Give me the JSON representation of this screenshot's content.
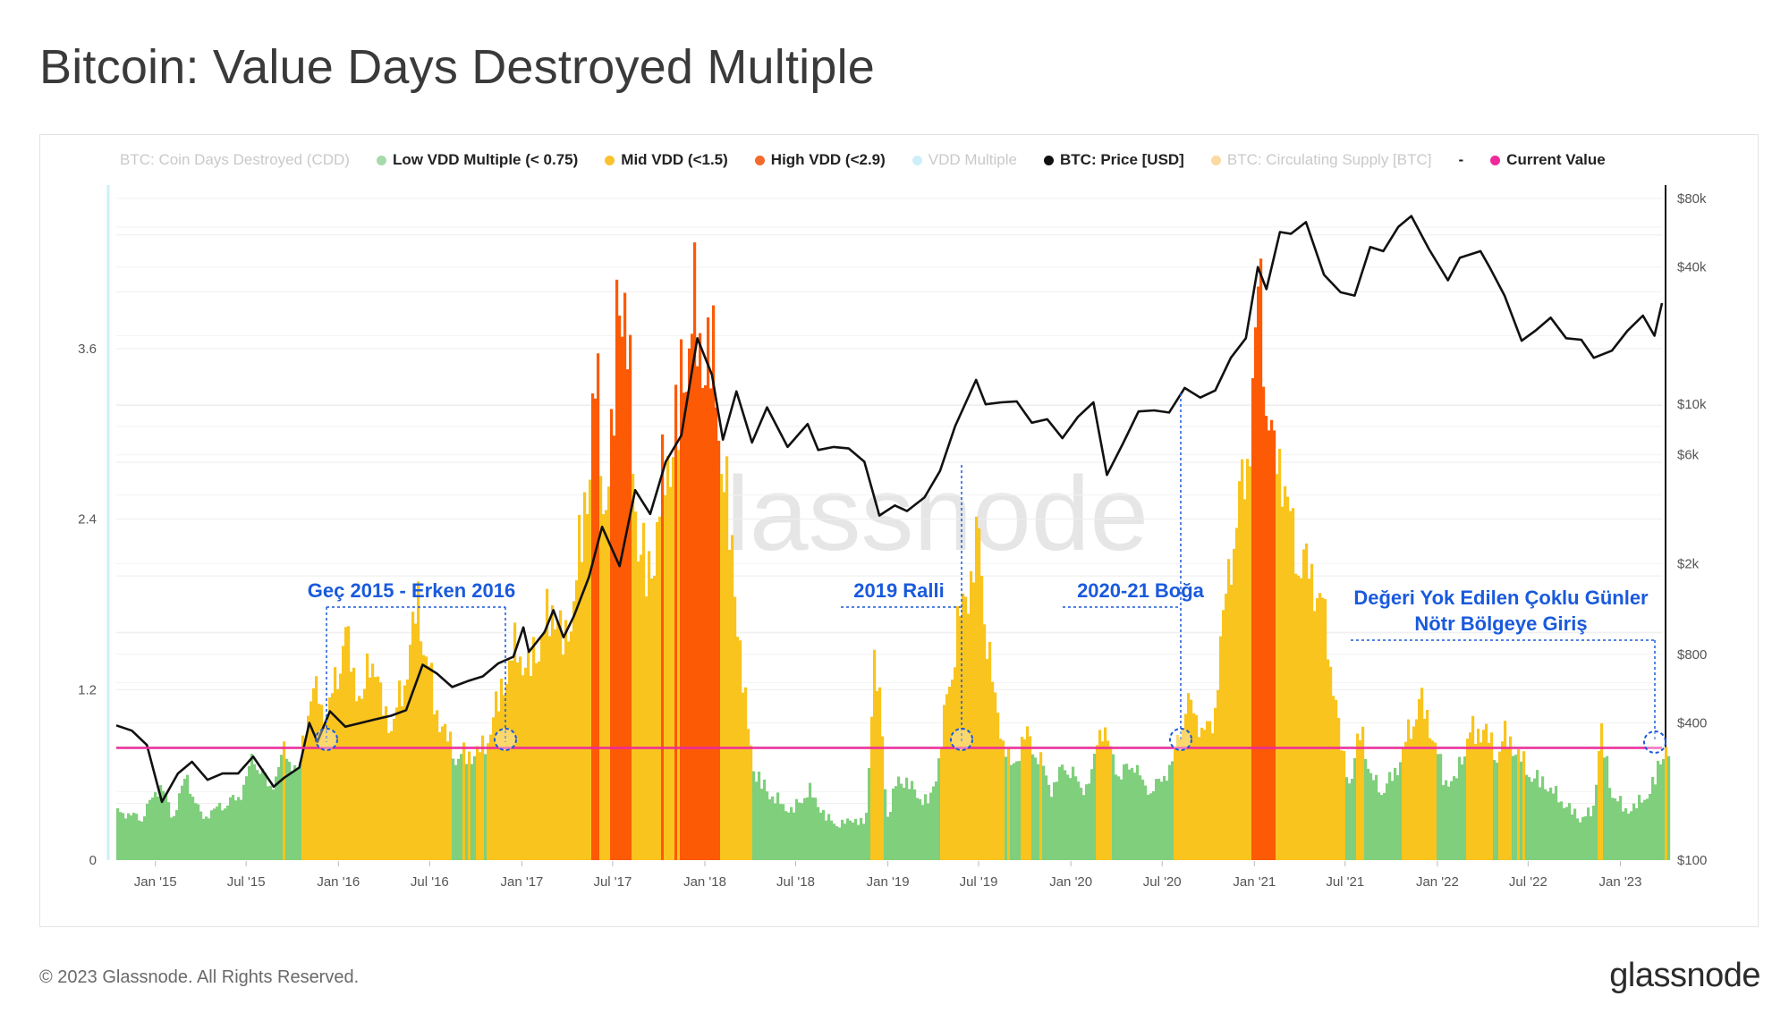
{
  "title": "Bitcoin: Value Days Destroyed Multiple",
  "footer": {
    "copyright": "© 2023 Glassnode. All Rights Reserved.",
    "logo": "glassnode"
  },
  "watermark": "glassnode",
  "legend": [
    {
      "label": "BTC: Coin Days Destroyed (CDD)",
      "color": "#c8c8c8",
      "dim": true,
      "marker": "none"
    },
    {
      "label": "Low VDD Multiple (< 0.75)",
      "color": "#a6dba9",
      "dim": false,
      "marker": "dot"
    },
    {
      "label": "Mid VDD (<1.5)",
      "color": "#f9c22e",
      "dim": false,
      "marker": "dot"
    },
    {
      "label": "High VDD (<2.9)",
      "color": "#f26a2c",
      "dim": false,
      "marker": "dot"
    },
    {
      "label": "VDD Multiple",
      "color": "#cdeffa",
      "dim": true,
      "marker": "dot"
    },
    {
      "label": "BTC: Price [USD]",
      "color": "#111111",
      "dim": false,
      "marker": "dot"
    },
    {
      "label": "BTC: Circulating Supply [BTC]",
      "color": "#fbd9a0",
      "dim": true,
      "marker": "dot"
    },
    {
      "label": "-",
      "color": "#333333",
      "dim": false,
      "marker": "none"
    },
    {
      "label": "Current Value",
      "color": "#ee2a9b",
      "dim": false,
      "marker": "dot"
    }
  ],
  "annotations": [
    {
      "text": "Geç 2015 - Erken 2016"
    },
    {
      "text": "2019 Ralli"
    },
    {
      "text": "2020-21 Boğa"
    },
    {
      "text": "Değeri Yok Edilen Çoklu Günler"
    },
    {
      "text": "Nötr Bölgeye Giriş"
    }
  ],
  "chart_data": {
    "type": "bar",
    "title": "Bitcoin: Value Days Destroyed Multiple",
    "x_ticks": [
      "Jan '15",
      "Jul '15",
      "Jan '16",
      "Jul '16",
      "Jan '17",
      "Jul '17",
      "Jan '18",
      "Jul '18",
      "Jan '19",
      "Jul '19",
      "Jan '20",
      "Jul '20",
      "Jan '21",
      "Jul '21",
      "Jan '22",
      "Jul '22",
      "Jan '23"
    ],
    "x_range": [
      "2014-10-15",
      "2023-03-25"
    ],
    "y_left": {
      "ticks": [
        "0",
        "1.2",
        "2.4",
        "3.6"
      ],
      "ylim": [
        0,
        4.8
      ]
    },
    "y_right": {
      "scale": "log",
      "ticks": [
        "$100",
        "$400",
        "$800",
        "$2k",
        "$6k",
        "$10k",
        "$40k",
        "$80k"
      ],
      "ylim": [
        100,
        80000
      ]
    },
    "current_value": 0.79,
    "colors": {
      "low": "#7fcf7c",
      "mid": "#f9c41e",
      "high": "#fc5a05",
      "price": "#111111",
      "current": "#ee2a9b",
      "annotation": "#1a5adc"
    },
    "thresholds": {
      "low": 0.75,
      "mid": 1.5,
      "high": 2.9
    },
    "series": [
      {
        "name": "VDD Multiple",
        "points": [
          [
            "2014-10-15",
            0.35
          ],
          [
            "2014-12-01",
            0.3
          ],
          [
            "2015-01-10",
            0.55
          ],
          [
            "2015-02-01",
            0.3
          ],
          [
            "2015-03-01",
            0.6
          ],
          [
            "2015-04-01",
            0.3
          ],
          [
            "2015-05-15",
            0.4
          ],
          [
            "2015-06-15",
            0.45
          ],
          [
            "2015-07-15",
            0.75
          ],
          [
            "2015-08-15",
            0.5
          ],
          [
            "2015-09-15",
            0.8
          ],
          [
            "2015-10-10",
            0.6
          ],
          [
            "2015-11-01",
            1.15
          ],
          [
            "2015-11-20",
            1.2
          ],
          [
            "2015-12-05",
            1.0
          ],
          [
            "2015-12-25",
            1.3
          ],
          [
            "2016-01-10",
            1.65
          ],
          [
            "2016-01-25",
            1.4
          ],
          [
            "2016-02-15",
            1.1
          ],
          [
            "2016-03-05",
            1.55
          ],
          [
            "2016-03-25",
            1.1
          ],
          [
            "2016-04-15",
            0.95
          ],
          [
            "2016-05-10",
            1.3
          ],
          [
            "2016-06-05",
            1.85
          ],
          [
            "2016-06-20",
            1.5
          ],
          [
            "2016-07-10",
            1.1
          ],
          [
            "2016-07-30",
            0.9
          ],
          [
            "2016-08-20",
            0.75
          ],
          [
            "2016-09-15",
            0.75
          ],
          [
            "2016-10-15",
            0.8
          ],
          [
            "2016-11-05",
            1.05
          ],
          [
            "2016-11-25",
            1.3
          ],
          [
            "2016-12-20",
            1.55
          ],
          [
            "2017-01-10",
            1.35
          ],
          [
            "2017-02-05",
            1.6
          ],
          [
            "2017-03-05",
            1.85
          ],
          [
            "2017-03-25",
            1.5
          ],
          [
            "2017-04-20",
            2.1
          ],
          [
            "2017-05-15",
            2.9
          ],
          [
            "2017-05-25",
            3.5
          ],
          [
            "2017-06-10",
            2.6
          ],
          [
            "2017-06-25",
            2.8
          ],
          [
            "2017-07-10",
            4.2
          ],
          [
            "2017-07-25",
            3.9
          ],
          [
            "2017-08-15",
            2.4
          ],
          [
            "2017-09-10",
            2.0
          ],
          [
            "2017-10-01",
            2.6
          ],
          [
            "2017-10-25",
            3.0
          ],
          [
            "2017-11-15",
            3.4
          ],
          [
            "2017-12-05",
            4.0
          ],
          [
            "2017-12-20",
            3.6
          ],
          [
            "2018-01-10",
            3.7
          ],
          [
            "2018-02-05",
            2.8
          ],
          [
            "2018-03-01",
            1.9
          ],
          [
            "2018-03-20",
            1.1
          ],
          [
            "2018-04-10",
            0.6
          ],
          [
            "2018-05-15",
            0.45
          ],
          [
            "2018-06-20",
            0.35
          ],
          [
            "2018-07-25",
            0.5
          ],
          [
            "2018-08-30",
            0.3
          ],
          [
            "2018-09-25",
            0.25
          ],
          [
            "2018-10-20",
            0.3
          ],
          [
            "2018-11-15",
            0.25
          ],
          [
            "2018-12-01",
            1.4
          ],
          [
            "2018-12-15",
            1.1
          ],
          [
            "2018-12-28",
            0.3
          ],
          [
            "2019-01-20",
            0.6
          ],
          [
            "2019-02-20",
            0.5
          ],
          [
            "2019-03-20",
            0.4
          ],
          [
            "2019-04-10",
            0.7
          ],
          [
            "2019-05-01",
            1.3
          ],
          [
            "2019-05-20",
            1.7
          ],
          [
            "2019-06-10",
            2.0
          ],
          [
            "2019-06-30",
            2.3
          ],
          [
            "2019-07-15",
            1.6
          ],
          [
            "2019-08-01",
            1.1
          ],
          [
            "2019-09-01",
            0.65
          ],
          [
            "2019-10-01",
            0.9
          ],
          [
            "2019-10-25",
            0.75
          ],
          [
            "2019-11-20",
            0.5
          ],
          [
            "2019-12-20",
            0.7
          ],
          [
            "2020-01-20",
            0.5
          ],
          [
            "2020-02-10",
            0.6
          ],
          [
            "2020-02-25",
            1.0
          ],
          [
            "2020-03-15",
            0.8
          ],
          [
            "2020-04-05",
            0.6
          ],
          [
            "2020-05-05",
            0.7
          ],
          [
            "2020-05-25",
            0.5
          ],
          [
            "2020-06-25",
            0.55
          ],
          [
            "2020-07-25",
            0.75
          ],
          [
            "2020-08-15",
            1.15
          ],
          [
            "2020-09-05",
            1.0
          ],
          [
            "2020-10-05",
            0.9
          ],
          [
            "2020-10-25",
            1.6
          ],
          [
            "2020-11-20",
            2.4
          ],
          [
            "2020-12-10",
            2.7
          ],
          [
            "2020-12-25",
            3.3
          ],
          [
            "2021-01-08",
            4.1
          ],
          [
            "2021-01-20",
            3.6
          ],
          [
            "2021-02-05",
            2.8
          ],
          [
            "2021-02-20",
            2.9
          ],
          [
            "2021-03-15",
            2.3
          ],
          [
            "2021-04-10",
            2.1
          ],
          [
            "2021-05-10",
            1.9
          ],
          [
            "2021-06-01",
            1.4
          ],
          [
            "2021-06-20",
            0.8
          ],
          [
            "2021-07-10",
            0.55
          ],
          [
            "2021-08-01",
            1.0
          ],
          [
            "2021-08-15",
            0.6
          ],
          [
            "2021-09-15",
            0.5
          ],
          [
            "2021-10-15",
            0.7
          ],
          [
            "2021-11-10",
            1.0
          ],
          [
            "2021-11-25",
            1.15
          ],
          [
            "2021-12-20",
            0.9
          ],
          [
            "2022-01-10",
            0.6
          ],
          [
            "2022-02-01",
            0.55
          ],
          [
            "2022-03-01",
            0.9
          ],
          [
            "2022-04-01",
            0.95
          ],
          [
            "2022-04-25",
            0.75
          ],
          [
            "2022-05-15",
            0.9
          ],
          [
            "2022-06-10",
            0.75
          ],
          [
            "2022-07-05",
            0.6
          ],
          [
            "2022-08-01",
            0.55
          ],
          [
            "2022-09-10",
            0.4
          ],
          [
            "2022-10-10",
            0.3
          ],
          [
            "2022-11-05",
            0.35
          ],
          [
            "2022-11-20",
            0.95
          ],
          [
            "2022-12-10",
            0.5
          ],
          [
            "2023-01-10",
            0.35
          ],
          [
            "2023-02-01",
            0.4
          ],
          [
            "2023-03-01",
            0.5
          ],
          [
            "2023-03-25",
            0.79
          ]
        ]
      },
      {
        "name": "BTC: Price [USD]",
        "points": [
          [
            "2014-10-15",
            390
          ],
          [
            "2014-11-15",
            370
          ],
          [
            "2014-12-15",
            320
          ],
          [
            "2015-01-14",
            180
          ],
          [
            "2015-02-15",
            240
          ],
          [
            "2015-03-15",
            270
          ],
          [
            "2015-04-15",
            225
          ],
          [
            "2015-05-15",
            240
          ],
          [
            "2015-06-15",
            240
          ],
          [
            "2015-07-15",
            285
          ],
          [
            "2015-08-25",
            210
          ],
          [
            "2015-09-15",
            230
          ],
          [
            "2015-10-15",
            255
          ],
          [
            "2015-11-04",
            400
          ],
          [
            "2015-11-20",
            330
          ],
          [
            "2015-12-15",
            450
          ],
          [
            "2016-01-15",
            385
          ],
          [
            "2016-02-15",
            400
          ],
          [
            "2016-03-15",
            415
          ],
          [
            "2016-04-15",
            430
          ],
          [
            "2016-05-15",
            455
          ],
          [
            "2016-06-17",
            720
          ],
          [
            "2016-07-15",
            660
          ],
          [
            "2016-08-15",
            575
          ],
          [
            "2016-09-15",
            610
          ],
          [
            "2016-10-15",
            640
          ],
          [
            "2016-11-15",
            730
          ],
          [
            "2016-12-15",
            780
          ],
          [
            "2017-01-04",
            1050
          ],
          [
            "2017-01-15",
            820
          ],
          [
            "2017-02-15",
            1000
          ],
          [
            "2017-03-05",
            1250
          ],
          [
            "2017-03-25",
            950
          ],
          [
            "2017-04-15",
            1180
          ],
          [
            "2017-05-15",
            1750
          ],
          [
            "2017-06-10",
            2900
          ],
          [
            "2017-07-15",
            1950
          ],
          [
            "2017-08-15",
            4200
          ],
          [
            "2017-09-14",
            3300
          ],
          [
            "2017-10-15",
            5600
          ],
          [
            "2017-11-15",
            7300
          ],
          [
            "2017-12-17",
            19500
          ],
          [
            "2018-01-15",
            13500
          ],
          [
            "2018-02-06",
            7000
          ],
          [
            "2018-03-05",
            11400
          ],
          [
            "2018-04-05",
            6800
          ],
          [
            "2018-05-05",
            9700
          ],
          [
            "2018-06-15",
            6500
          ],
          [
            "2018-07-25",
            8200
          ],
          [
            "2018-08-15",
            6300
          ],
          [
            "2018-09-15",
            6500
          ],
          [
            "2018-10-15",
            6400
          ],
          [
            "2018-11-15",
            5600
          ],
          [
            "2018-12-15",
            3250
          ],
          [
            "2019-01-15",
            3600
          ],
          [
            "2019-02-08",
            3400
          ],
          [
            "2019-03-15",
            3900
          ],
          [
            "2019-04-15",
            5100
          ],
          [
            "2019-05-15",
            8000
          ],
          [
            "2019-06-26",
            12800
          ],
          [
            "2019-07-15",
            10000
          ],
          [
            "2019-08-15",
            10200
          ],
          [
            "2019-09-15",
            10300
          ],
          [
            "2019-10-15",
            8300
          ],
          [
            "2019-11-15",
            8600
          ],
          [
            "2019-12-15",
            7100
          ],
          [
            "2020-01-15",
            8800
          ],
          [
            "2020-02-15",
            10200
          ],
          [
            "2020-03-13",
            4900
          ],
          [
            "2020-04-15",
            6800
          ],
          [
            "2020-05-15",
            9300
          ],
          [
            "2020-06-15",
            9400
          ],
          [
            "2020-07-15",
            9200
          ],
          [
            "2020-08-15",
            11800
          ],
          [
            "2020-09-15",
            10700
          ],
          [
            "2020-10-15",
            11500
          ],
          [
            "2020-11-15",
            16000
          ],
          [
            "2020-12-15",
            19500
          ],
          [
            "2021-01-08",
            40000
          ],
          [
            "2021-01-25",
            32000
          ],
          [
            "2021-02-21",
            57000
          ],
          [
            "2021-03-15",
            56000
          ],
          [
            "2021-04-14",
            63000
          ],
          [
            "2021-05-20",
            37000
          ],
          [
            "2021-06-22",
            31000
          ],
          [
            "2021-07-20",
            30000
          ],
          [
            "2021-08-20",
            49000
          ],
          [
            "2021-09-15",
            47000
          ],
          [
            "2021-10-15",
            60000
          ],
          [
            "2021-11-10",
            67000
          ],
          [
            "2021-12-15",
            48000
          ],
          [
            "2022-01-22",
            35000
          ],
          [
            "2022-02-15",
            44000
          ],
          [
            "2022-03-28",
            47000
          ],
          [
            "2022-04-15",
            40000
          ],
          [
            "2022-05-15",
            30000
          ],
          [
            "2022-06-18",
            19000
          ],
          [
            "2022-07-15",
            21000
          ],
          [
            "2022-08-15",
            24000
          ],
          [
            "2022-09-15",
            19500
          ],
          [
            "2022-10-15",
            19200
          ],
          [
            "2022-11-09",
            16000
          ],
          [
            "2022-12-15",
            17200
          ],
          [
            "2023-01-15",
            21000
          ],
          [
            "2023-02-15",
            24500
          ],
          [
            "2023-03-10",
            20000
          ],
          [
            "2023-03-25",
            27800
          ]
        ]
      }
    ]
  }
}
